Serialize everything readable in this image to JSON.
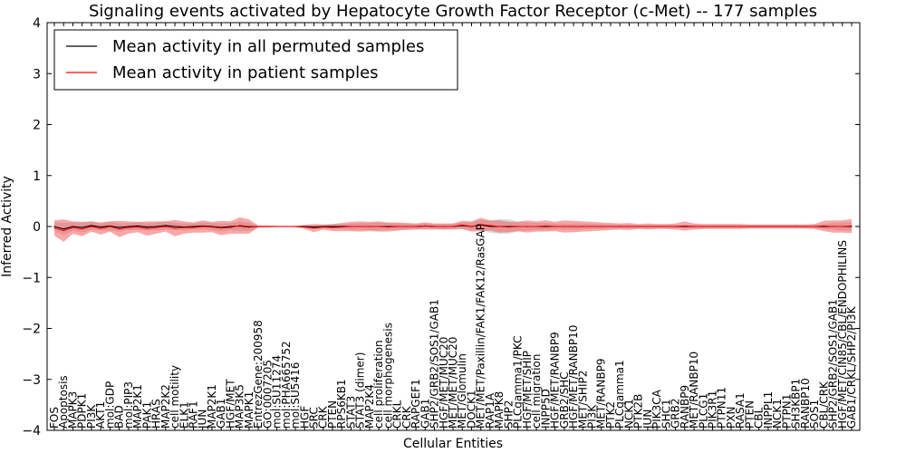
{
  "chart_data": {
    "type": "line",
    "title": "Signaling events activated by Hepatocyte Growth Factor Receptor (c-Met) -- 177 samples",
    "xlabel": "Cellular Entities",
    "ylabel": "Inferred Activity",
    "ylim": [
      -4,
      4
    ],
    "yticks": [
      "4",
      "3",
      "2",
      "1",
      "0",
      "−1",
      "−2",
      "−3",
      "−4"
    ],
    "grid": false,
    "legend_position": "top-left",
    "legend": [
      {
        "label": "Mean activity in all permuted samples",
        "color": "#000000"
      },
      {
        "label": "Mean activity in patient samples",
        "color": "#ff0000"
      }
    ],
    "categories": [
      "FOS",
      "Apoptosis",
      "MAPK3",
      "PDPK1",
      "PI3K",
      "AKT1",
      "mol:GDP",
      "BAD",
      "mol:PIP3",
      "MAP2K1",
      "PAK1",
      "HRAS",
      "MAP2K2",
      "cell motility",
      "ELK1",
      "RAF1",
      "JUN",
      "MAP2K1",
      "GAB1",
      "HGF/MET",
      "MAP3K5",
      "MAPK1",
      "EntrezGene:200958",
      "GO:0007205",
      "mol:SU11274",
      "mol:PHA665752",
      "mol:SU5416",
      "HGF",
      "SRC",
      "CRK",
      "PTEN",
      "RPS6KB1",
      "STAT3",
      "STAT3 (dimer)",
      "MAP2K4",
      "cell proliferation",
      "cell morphogenesis",
      "CRKL",
      "CRK",
      "RAPGEF1",
      "GAB1",
      "SHP2/GRB2/SOS1/GAB1",
      "HGF/MET/MUC20",
      "MET/MET/MUC20",
      "MET/Glomulin",
      "DOCK1",
      "MET/MET/Paxillin/FAK1/FAK12/RasGAP",
      "RAP1A",
      "MAPK8",
      "SHP2",
      "PLCgamma1/PKC",
      "HGF/MET/SHIP",
      "cell migration",
      "INPP5D",
      "HGF/MET/RANBP9",
      "GRB2/SHC",
      "HGF/MET/RANBP10",
      "MET/SHIP2",
      "PI3K",
      "MET/RANBP9",
      "PTK2",
      "PLCgamma1",
      "NCK1",
      "PTK2B",
      "JUN",
      "PIK3CA",
      "SHC1",
      "GRB2",
      "RANBP9",
      "MET/RANBP10",
      "PLCG1",
      "PIK3R1",
      "PTPN11",
      "PXN",
      "RASA1",
      "PTEN",
      "CBL",
      "INPPL1",
      "NCK1",
      "PTPN1",
      "SH3KBP1",
      "RANBP10",
      "SOS1",
      "CBL/CRK",
      "SHP2/GRB2/SOS1/GAB1",
      "HGF/MET/CIN85/CBL/ENDOPHILINS",
      "GAB1/CRKL/SHP2/PI3K"
    ],
    "series": [
      {
        "name": "Mean activity in all permuted samples",
        "color": "#000000",
        "values": [
          0.0,
          -0.05,
          0.0,
          -0.02,
          0.02,
          -0.01,
          0.01,
          -0.02,
          0.0,
          0.01,
          -0.01,
          0.0,
          0.02,
          0.0,
          -0.01,
          0.0,
          0.01,
          0.0,
          -0.02,
          0.0,
          0.01,
          -0.01,
          0.0,
          0.0,
          0.0,
          0.0,
          0.0,
          0.0,
          -0.01,
          0.0,
          0.0,
          0.0,
          0.0,
          0.0,
          0.0,
          0.0,
          0.0,
          0.0,
          0.0,
          0.0,
          0.01,
          0.0,
          0.0,
          0.0,
          0.02,
          0.0,
          0.03,
          0.0,
          0.0,
          0.0,
          0.0,
          0.0,
          0.0,
          0.0,
          0.0,
          0.0,
          0.0,
          0.0,
          0.0,
          0.0,
          0.0,
          0.0,
          0.0,
          0.0,
          0.0,
          0.0,
          0.0,
          0.0,
          0.0,
          0.0,
          0.0,
          0.0,
          0.0,
          0.0,
          0.0,
          0.0,
          0.0,
          0.0,
          0.0,
          0.0,
          0.0,
          0.0,
          0.0,
          0.0,
          0.0,
          0.0,
          0.0
        ],
        "band": [
          0.08,
          0.12,
          0.08,
          0.1,
          0.08,
          0.07,
          0.09,
          0.08,
          0.07,
          0.08,
          0.07,
          0.08,
          0.08,
          0.07,
          0.07,
          0.06,
          0.07,
          0.07,
          0.08,
          0.07,
          0.09,
          0.08,
          0.02,
          0.01,
          0.01,
          0.01,
          0.01,
          0.02,
          0.04,
          0.03,
          0.04,
          0.05,
          0.06,
          0.07,
          0.07,
          0.08,
          0.07,
          0.06,
          0.06,
          0.05,
          0.05,
          0.05,
          0.05,
          0.05,
          0.06,
          0.08,
          0.1,
          0.12,
          0.14,
          0.14,
          0.1,
          0.08,
          0.07,
          0.07,
          0.06,
          0.06,
          0.06,
          0.06,
          0.05,
          0.05,
          0.04,
          0.04,
          0.04,
          0.03,
          0.03,
          0.03,
          0.03,
          0.03,
          0.03,
          0.04,
          0.03,
          0.03,
          0.03,
          0.03,
          0.03,
          0.03,
          0.03,
          0.03,
          0.03,
          0.03,
          0.03,
          0.03,
          0.03,
          0.05,
          0.07,
          0.08,
          0.08
        ]
      },
      {
        "name": "Mean activity in patient samples",
        "color": "#ff0000",
        "values": [
          -0.03,
          -0.08,
          -0.02,
          -0.05,
          0.0,
          -0.04,
          0.0,
          -0.05,
          -0.02,
          -0.01,
          -0.04,
          -0.02,
          0.0,
          -0.03,
          -0.02,
          -0.02,
          0.0,
          -0.01,
          -0.03,
          -0.02,
          0.02,
          0.0,
          0.0,
          0.0,
          0.0,
          0.0,
          0.0,
          -0.01,
          -0.03,
          -0.01,
          -0.02,
          -0.01,
          0.0,
          0.0,
          0.0,
          0.0,
          -0.01,
          0.0,
          0.0,
          0.0,
          0.01,
          0.0,
          0.0,
          0.0,
          0.03,
          0.0,
          0.04,
          0.02,
          0.0,
          -0.01,
          0.0,
          0.0,
          0.0,
          0.01,
          0.0,
          0.0,
          0.0,
          0.0,
          0.0,
          0.0,
          0.0,
          0.0,
          0.0,
          0.0,
          0.0,
          0.0,
          0.0,
          0.0,
          0.01,
          0.0,
          0.0,
          0.0,
          0.0,
          0.0,
          0.0,
          0.0,
          0.0,
          0.0,
          0.0,
          0.0,
          0.0,
          0.0,
          0.0,
          0.01,
          0.0,
          0.0,
          0.01
        ],
        "band": [
          0.15,
          0.22,
          0.12,
          0.14,
          0.1,
          0.12,
          0.1,
          0.16,
          0.12,
          0.1,
          0.14,
          0.12,
          0.1,
          0.16,
          0.12,
          0.1,
          0.12,
          0.1,
          0.14,
          0.12,
          0.16,
          0.14,
          0.02,
          0.02,
          0.01,
          0.01,
          0.01,
          0.04,
          0.08,
          0.05,
          0.07,
          0.08,
          0.09,
          0.1,
          0.09,
          0.1,
          0.09,
          0.08,
          0.07,
          0.06,
          0.07,
          0.06,
          0.06,
          0.06,
          0.08,
          0.1,
          0.13,
          0.1,
          0.12,
          0.1,
          0.09,
          0.12,
          0.1,
          0.11,
          0.09,
          0.12,
          0.11,
          0.1,
          0.09,
          0.08,
          0.07,
          0.06,
          0.07,
          0.05,
          0.06,
          0.05,
          0.05,
          0.06,
          0.09,
          0.06,
          0.05,
          0.05,
          0.05,
          0.05,
          0.05,
          0.04,
          0.04,
          0.04,
          0.04,
          0.04,
          0.04,
          0.04,
          0.05,
          0.1,
          0.12,
          0.12,
          0.14
        ]
      }
    ]
  }
}
